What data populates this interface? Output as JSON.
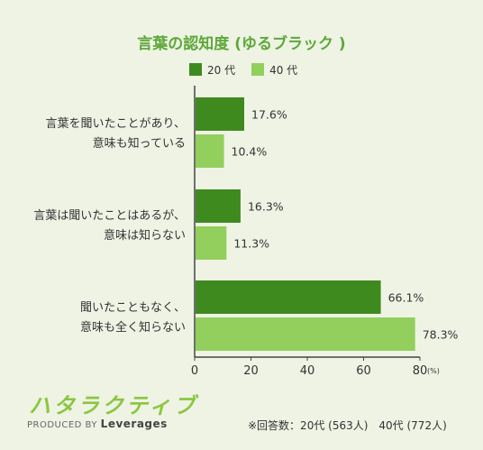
{
  "logo": {
    "text": "ハタラクティブ",
    "produced_by": "PRODUCED BY",
    "brand": "Leverages"
  },
  "footnote": "※回答数：20代 (563人)　40代 (772人)",
  "colors": {
    "title": "#5ea83a",
    "series_20": "#3e8a1f",
    "series_40": "#93cf5c",
    "background": "#eef3e4"
  },
  "chart_data": {
    "type": "bar",
    "orientation": "horizontal",
    "title": "言葉の認知度 (ゆるブラック )",
    "categories": [
      [
        "言葉を聞いたことがあり、",
        "意味も知っている"
      ],
      [
        "言葉は聞いたことはあるが、",
        "意味は知らない"
      ],
      [
        "聞いたこともなく、",
        "意味も全く知らない"
      ]
    ],
    "series": [
      {
        "name": "20 代",
        "values": [
          17.6,
          16.3,
          66.1
        ],
        "labels": [
          "17.6%",
          "16.3%",
          "66.1%"
        ]
      },
      {
        "name": "40 代",
        "values": [
          10.4,
          11.3,
          78.3
        ],
        "labels": [
          "10.4%",
          "11.3%",
          "78.3%"
        ]
      }
    ],
    "xlim": [
      0,
      80
    ],
    "xticks": [
      "0",
      "20",
      "40",
      "60",
      "80"
    ],
    "x_unit": "(%)",
    "legend": "top",
    "grid": false
  }
}
